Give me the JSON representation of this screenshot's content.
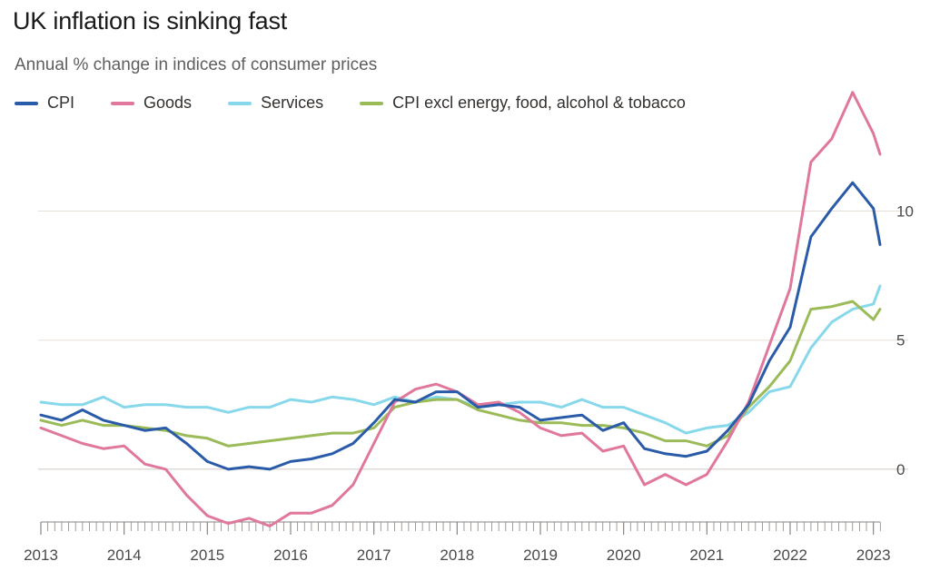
{
  "title": "UK inflation is sinking fast",
  "subtitle": "Annual % change in indices of consumer prices",
  "legend": [
    {
      "name": "CPI",
      "color": "#2a5ba8"
    },
    {
      "name": "Goods",
      "color": "#e0779c"
    },
    {
      "name": "Services",
      "color": "#86d8ea"
    },
    {
      "name": "CPI excl energy, food, alcohol & tobacco",
      "color": "#9bbb59"
    }
  ],
  "chart_data": {
    "type": "line",
    "title": "UK inflation is sinking fast",
    "subtitle": "Annual % change in indices of consumer prices",
    "xlabel": "",
    "ylabel": "",
    "xlim": [
      2013.0,
      2023.08
    ],
    "ylim": [
      -2.5,
      14.8
    ],
    "y_ticks": [
      0,
      5,
      10
    ],
    "x_ticks": [
      2013,
      2014,
      2015,
      2016,
      2017,
      2018,
      2019,
      2020,
      2021,
      2022,
      2023
    ],
    "grid": "horizontal",
    "series": [
      {
        "name": "CPI",
        "color": "#2a5ba8",
        "x": [
          2013.0,
          2013.25,
          2013.5,
          2013.75,
          2014.0,
          2014.25,
          2014.5,
          2014.75,
          2015.0,
          2015.25,
          2015.5,
          2015.75,
          2016.0,
          2016.25,
          2016.5,
          2016.75,
          2017.0,
          2017.25,
          2017.5,
          2017.75,
          2018.0,
          2018.25,
          2018.5,
          2018.75,
          2019.0,
          2019.25,
          2019.5,
          2019.75,
          2020.0,
          2020.25,
          2020.5,
          2020.75,
          2021.0,
          2021.25,
          2021.5,
          2021.75,
          2022.0,
          2022.25,
          2022.5,
          2022.75,
          2023.0,
          2023.08
        ],
        "values": [
          2.1,
          1.9,
          2.3,
          1.9,
          1.7,
          1.5,
          1.6,
          1.0,
          0.3,
          0.0,
          0.1,
          0.0,
          0.3,
          0.4,
          0.6,
          1.0,
          1.8,
          2.7,
          2.6,
          3.0,
          3.0,
          2.4,
          2.5,
          2.4,
          1.9,
          2.0,
          2.1,
          1.5,
          1.8,
          0.8,
          0.6,
          0.5,
          0.7,
          1.5,
          2.5,
          4.2,
          5.5,
          9.0,
          10.1,
          11.1,
          10.1,
          8.7
        ]
      },
      {
        "name": "Goods",
        "color": "#e0779c",
        "x": [
          2013.0,
          2013.25,
          2013.5,
          2013.75,
          2014.0,
          2014.25,
          2014.5,
          2014.75,
          2015.0,
          2015.25,
          2015.5,
          2015.75,
          2016.0,
          2016.25,
          2016.5,
          2016.75,
          2017.0,
          2017.25,
          2017.5,
          2017.75,
          2018.0,
          2018.25,
          2018.5,
          2018.75,
          2019.0,
          2019.25,
          2019.5,
          2019.75,
          2020.0,
          2020.25,
          2020.5,
          2020.75,
          2021.0,
          2021.25,
          2021.5,
          2021.75,
          2022.0,
          2022.25,
          2022.5,
          2022.75,
          2023.0,
          2023.08
        ],
        "values": [
          1.6,
          1.3,
          1.0,
          0.8,
          0.9,
          0.2,
          0.0,
          -1.0,
          -1.8,
          -2.1,
          -1.9,
          -2.2,
          -1.7,
          -1.7,
          -1.4,
          -0.6,
          1.0,
          2.6,
          3.1,
          3.3,
          3.0,
          2.5,
          2.6,
          2.2,
          1.6,
          1.3,
          1.4,
          0.7,
          0.9,
          -0.6,
          -0.2,
          -0.6,
          -0.2,
          1.1,
          2.6,
          4.8,
          7.0,
          11.9,
          12.8,
          14.6,
          13.0,
          12.2
        ]
      },
      {
        "name": "Services",
        "color": "#86d8ea",
        "x": [
          2013.0,
          2013.25,
          2013.5,
          2013.75,
          2014.0,
          2014.25,
          2014.5,
          2014.75,
          2015.0,
          2015.25,
          2015.5,
          2015.75,
          2016.0,
          2016.25,
          2016.5,
          2016.75,
          2017.0,
          2017.25,
          2017.5,
          2017.75,
          2018.0,
          2018.25,
          2018.5,
          2018.75,
          2019.0,
          2019.25,
          2019.5,
          2019.75,
          2020.0,
          2020.25,
          2020.5,
          2020.75,
          2021.0,
          2021.25,
          2021.5,
          2021.75,
          2022.0,
          2022.25,
          2022.5,
          2022.75,
          2023.0,
          2023.08
        ],
        "values": [
          2.6,
          2.5,
          2.5,
          2.8,
          2.4,
          2.5,
          2.5,
          2.4,
          2.4,
          2.2,
          2.4,
          2.4,
          2.7,
          2.6,
          2.8,
          2.7,
          2.5,
          2.8,
          2.6,
          2.8,
          2.7,
          2.4,
          2.5,
          2.6,
          2.6,
          2.4,
          2.7,
          2.4,
          2.4,
          2.1,
          1.8,
          1.4,
          1.6,
          1.7,
          2.2,
          3.0,
          3.2,
          4.7,
          5.7,
          6.2,
          6.4,
          7.1
        ]
      },
      {
        "name": "CPI excl energy, food, alcohol & tobacco",
        "color": "#9bbb59",
        "x": [
          2013.0,
          2013.25,
          2013.5,
          2013.75,
          2014.0,
          2014.25,
          2014.5,
          2014.75,
          2015.0,
          2015.25,
          2015.5,
          2015.75,
          2016.0,
          2016.25,
          2016.5,
          2016.75,
          2017.0,
          2017.25,
          2017.5,
          2017.75,
          2018.0,
          2018.25,
          2018.5,
          2018.75,
          2019.0,
          2019.25,
          2019.5,
          2019.75,
          2020.0,
          2020.25,
          2020.5,
          2020.75,
          2021.0,
          2021.25,
          2021.5,
          2021.75,
          2022.0,
          2022.25,
          2022.5,
          2022.75,
          2023.0,
          2023.08
        ],
        "values": [
          1.9,
          1.7,
          1.9,
          1.7,
          1.7,
          1.6,
          1.5,
          1.3,
          1.2,
          0.9,
          1.0,
          1.1,
          1.2,
          1.3,
          1.4,
          1.4,
          1.6,
          2.4,
          2.6,
          2.7,
          2.7,
          2.3,
          2.1,
          1.9,
          1.8,
          1.8,
          1.7,
          1.7,
          1.6,
          1.4,
          1.1,
          1.1,
          0.9,
          1.3,
          2.4,
          3.2,
          4.2,
          6.2,
          6.3,
          6.5,
          5.8,
          6.2
        ]
      }
    ]
  }
}
